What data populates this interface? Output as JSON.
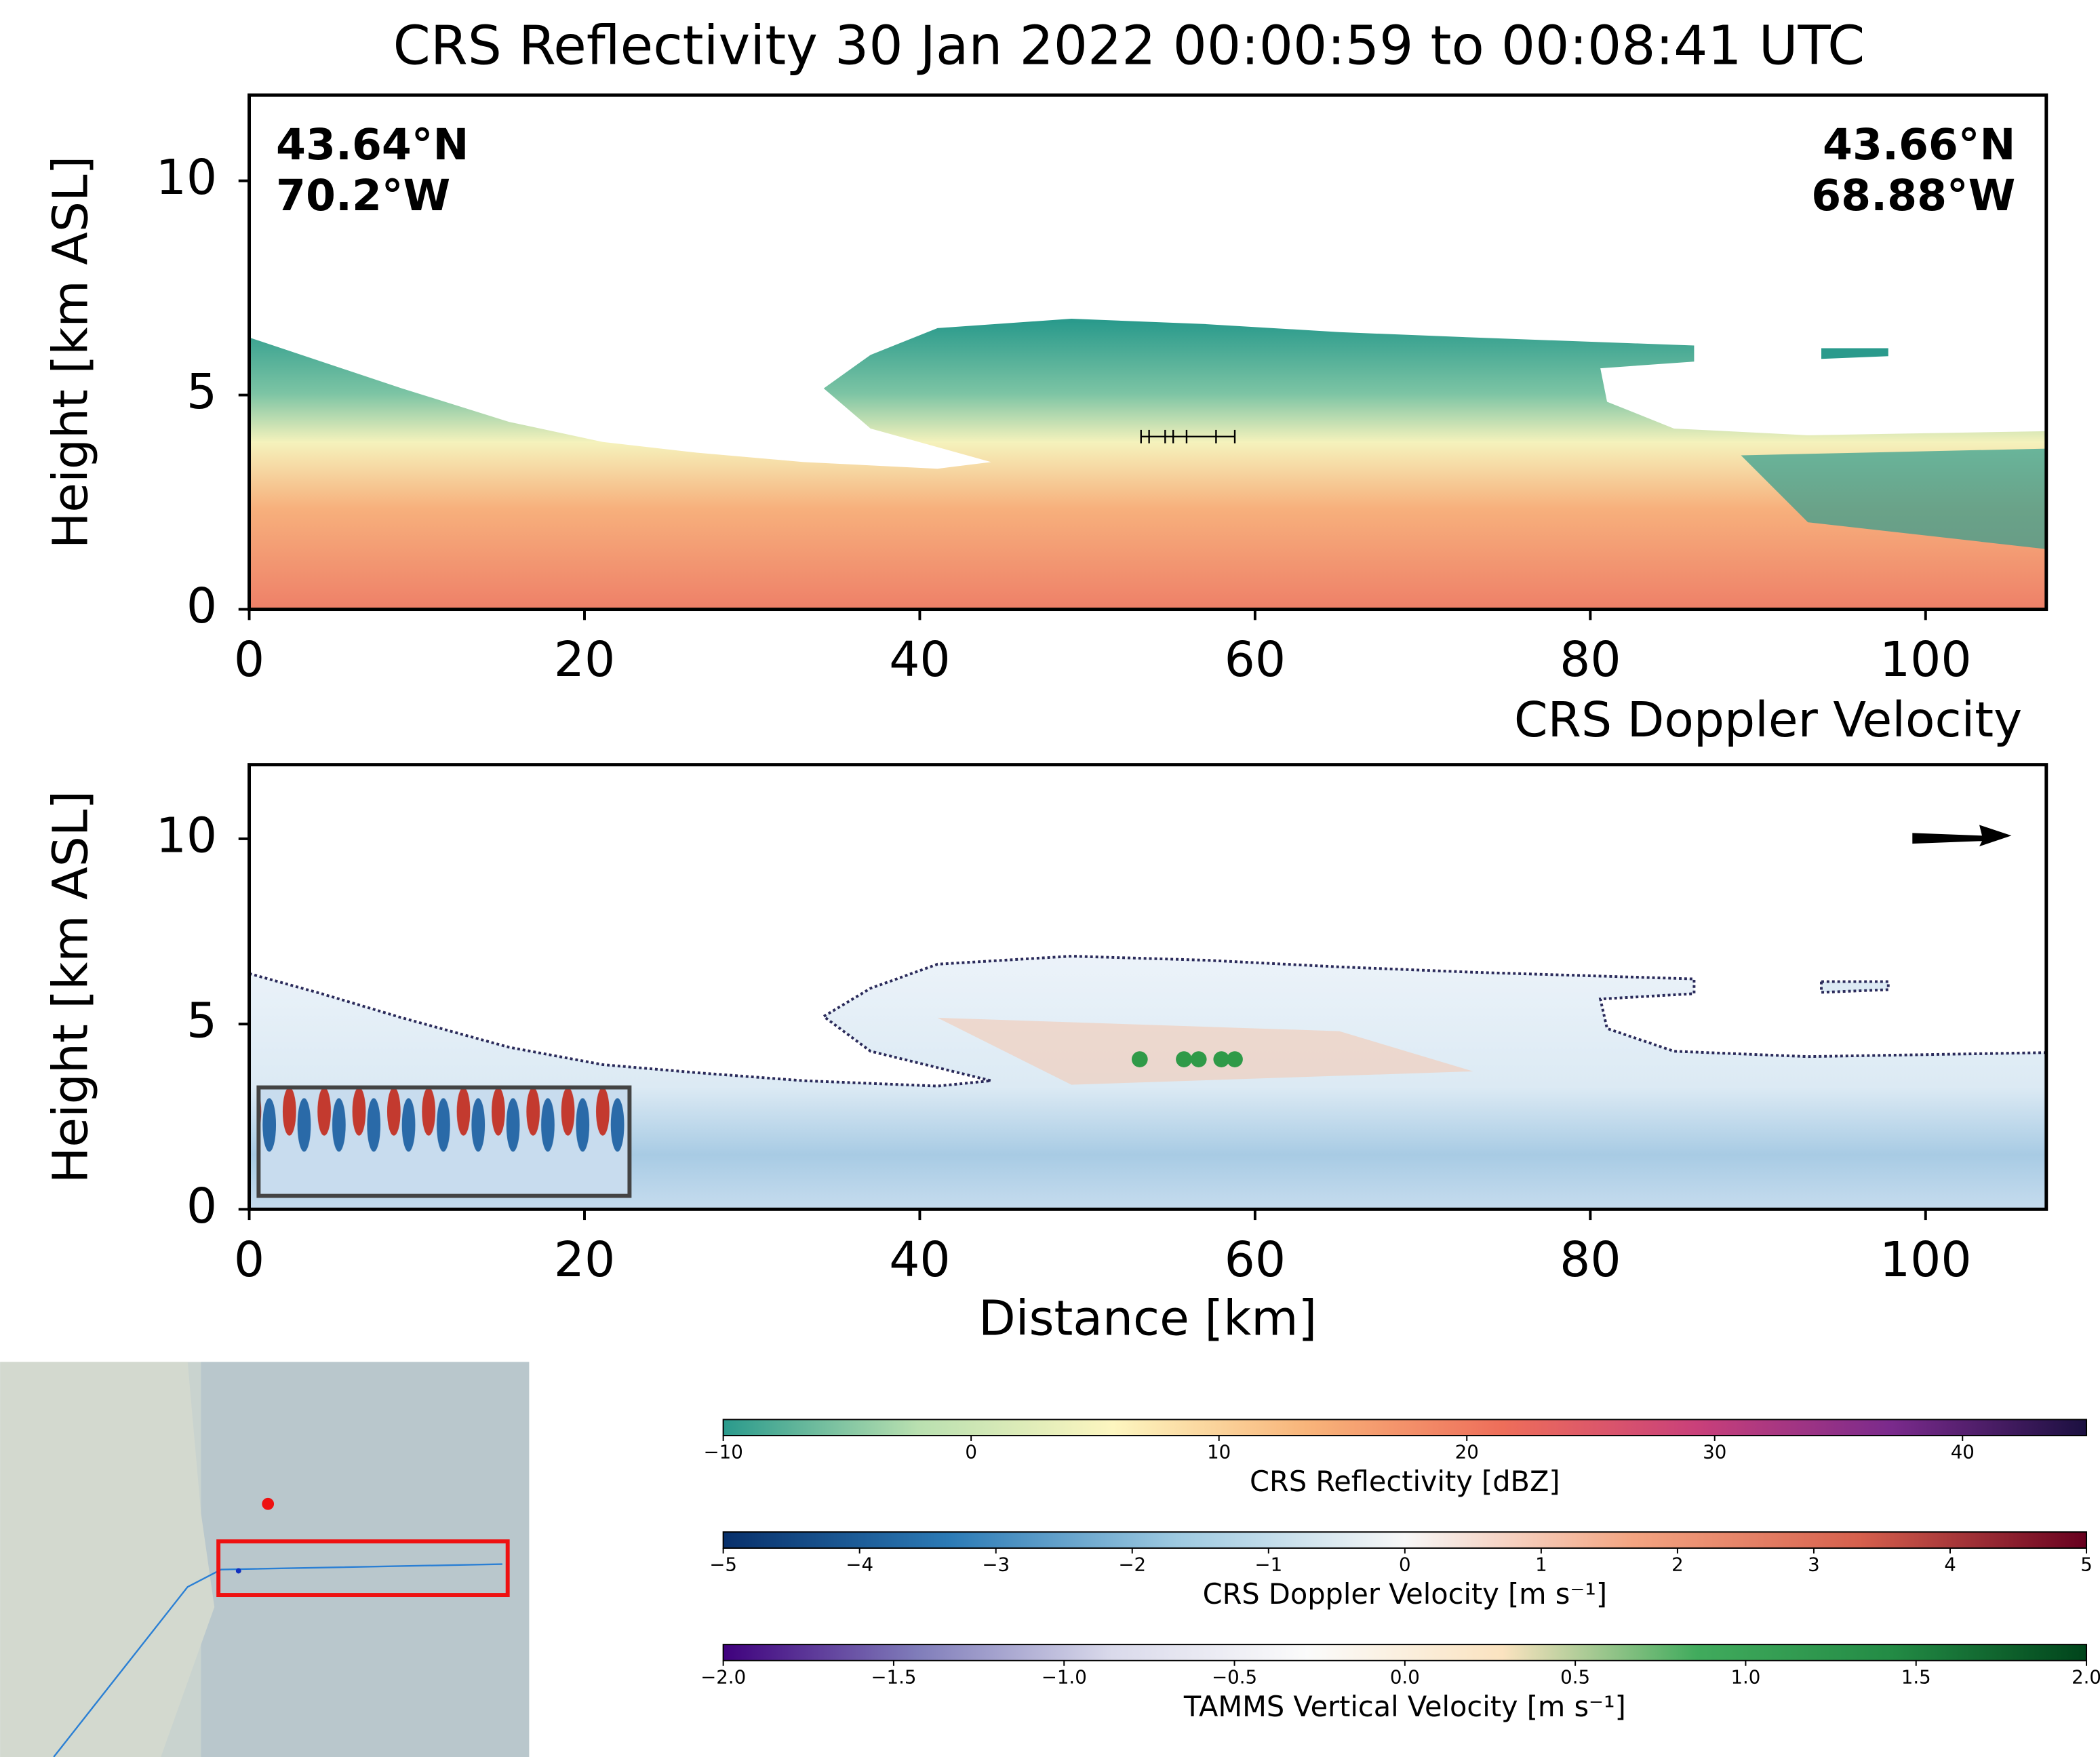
{
  "chart_data": [
    {
      "type": "heatmap",
      "title": "CRS Reflectivity 30 Jan 2022 00:00:59 to 00:08:41 UTC",
      "ylabel": "Height [km ASL]",
      "annotations": [
        "43.64°N",
        "70.2°W",
        "43.66°N",
        "68.88°W"
      ],
      "xlim": [
        0,
        107.2
      ],
      "xticks": [
        0,
        20,
        40,
        60,
        80,
        100
      ],
      "ylim": [
        0,
        12
      ],
      "yticks": [
        0,
        5,
        10
      ]
    },
    {
      "type": "heatmap",
      "title": "CRS Doppler Velocity",
      "ylabel": "Height [km ASL]",
      "xlabel": "Distance [km]",
      "xlim": [
        0,
        107.2
      ],
      "xticks": [
        0,
        20,
        40,
        60,
        80,
        100
      ],
      "ylim": [
        0,
        12
      ],
      "yticks": [
        0,
        5,
        10
      ]
    }
  ],
  "colorbars": [
    {
      "label": "CRS Reflectivity [dBZ]",
      "lim": [
        -10,
        45
      ],
      "ticks": [
        {
          "value": -10,
          "label": "−10"
        },
        0,
        10,
        20,
        30,
        40
      ],
      "colors": [
        "#2a9a8c",
        "#b9e0b0",
        "#fdf6c0",
        "#f8b47a",
        "#ee6e5a",
        "#c9407a",
        "#7a2a8c",
        "#1b1040"
      ]
    },
    {
      "label": "CRS Doppler Velocity [m s⁻¹]",
      "lim": [
        -5,
        5
      ],
      "ticks": [
        {
          "value": -5,
          "label": "−5"
        },
        {
          "value": -4,
          "label": "−4"
        },
        {
          "value": -3,
          "label": "−3"
        },
        {
          "value": -2,
          "label": "−2"
        },
        {
          "value": -1,
          "label": "−1"
        },
        0,
        1,
        2,
        3,
        4,
        5
      ],
      "colors": [
        "#08306b",
        "#2c7bb6",
        "#9ecae1",
        "#f7f7f7",
        "#f4a582",
        "#d6604d",
        "#67001f"
      ]
    },
    {
      "label": "TAMMS Vertical Velocity [m s⁻¹]",
      "lim": [
        -2,
        2
      ],
      "ticks": [
        {
          "value": -2,
          "label": "−2.0"
        },
        {
          "value": -1.5,
          "label": "−1.5"
        },
        {
          "value": -1,
          "label": "−1.0"
        },
        {
          "value": -0.5,
          "label": "−0.5"
        },
        {
          "value": 0,
          "label": "0.0"
        },
        {
          "value": 0.5,
          "label": "0.5"
        },
        {
          "value": 1,
          "label": "1.0"
        },
        {
          "value": 1.5,
          "label": "1.5"
        },
        {
          "value": 2,
          "label": "2.0"
        }
      ],
      "colors": [
        "#3f007d",
        "#807dba",
        "#dadaeb",
        "#fbfbfb",
        "#fbe3c0",
        "#41ab5d",
        "#238b45",
        "#00441b"
      ]
    }
  ]
}
